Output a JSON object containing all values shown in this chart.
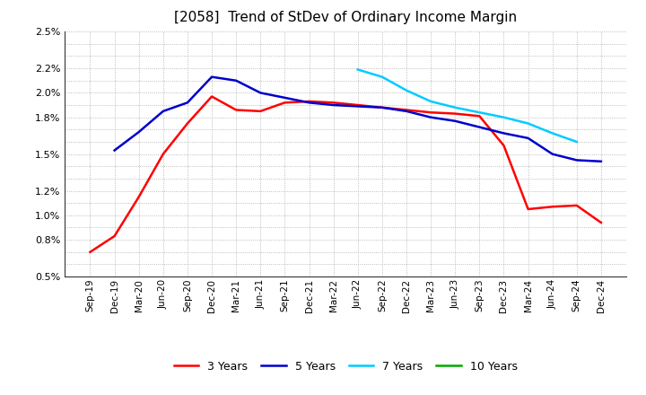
{
  "title": "[2058]  Trend of StDev of Ordinary Income Margin",
  "x_labels": [
    "Sep-19",
    "Dec-19",
    "Mar-20",
    "Jun-20",
    "Sep-20",
    "Dec-20",
    "Mar-21",
    "Jun-21",
    "Sep-21",
    "Dec-21",
    "Mar-22",
    "Jun-22",
    "Sep-22",
    "Dec-22",
    "Mar-23",
    "Jun-23",
    "Sep-23",
    "Dec-23",
    "Mar-24",
    "Jun-24",
    "Sep-24",
    "Dec-24"
  ],
  "series_3y": [
    0.007,
    0.0083,
    0.0115,
    0.015,
    0.0175,
    0.0197,
    0.0186,
    0.0185,
    0.0192,
    0.0193,
    0.0192,
    0.019,
    0.0188,
    0.0186,
    0.0184,
    0.0183,
    0.0181,
    0.0157,
    0.0105,
    0.0107,
    0.0108,
    0.0094
  ],
  "series_5y": [
    null,
    0.0153,
    0.0168,
    0.0185,
    0.0192,
    0.0213,
    0.021,
    0.02,
    0.0196,
    0.0192,
    0.019,
    0.0189,
    0.0188,
    0.0185,
    0.018,
    0.0177,
    0.0172,
    0.0167,
    0.0163,
    0.015,
    0.0145,
    0.0144
  ],
  "series_7y": [
    null,
    null,
    null,
    null,
    null,
    null,
    null,
    null,
    null,
    null,
    null,
    0.0219,
    0.0213,
    0.0202,
    0.0193,
    0.0188,
    0.0184,
    0.018,
    0.0175,
    0.0167,
    0.016,
    null
  ],
  "series_10y": [
    null,
    null,
    null,
    null,
    null,
    null,
    null,
    null,
    null,
    null,
    null,
    null,
    null,
    null,
    null,
    null,
    null,
    null,
    null,
    null,
    null,
    null
  ],
  "color_3y": "#FF0000",
  "color_5y": "#0000CC",
  "color_7y": "#00CCFF",
  "color_10y": "#00AA00",
  "ylim_min": 0.005,
  "ylim_max": 0.025,
  "ytick_vals": [
    0.005,
    0.006,
    0.007,
    0.008,
    0.009,
    0.01,
    0.011,
    0.012,
    0.013,
    0.014,
    0.015,
    0.016,
    0.017,
    0.018,
    0.019,
    0.02,
    0.021,
    0.022,
    0.023,
    0.024,
    0.025
  ],
  "ytick_labeled": [
    0.005,
    0.008,
    0.01,
    0.012,
    0.015,
    0.018,
    0.02,
    0.022,
    0.025
  ],
  "background_color": "#FFFFFF",
  "grid_color": "#AAAAAA",
  "legend_labels": [
    "3 Years",
    "5 Years",
    "7 Years",
    "10 Years"
  ]
}
